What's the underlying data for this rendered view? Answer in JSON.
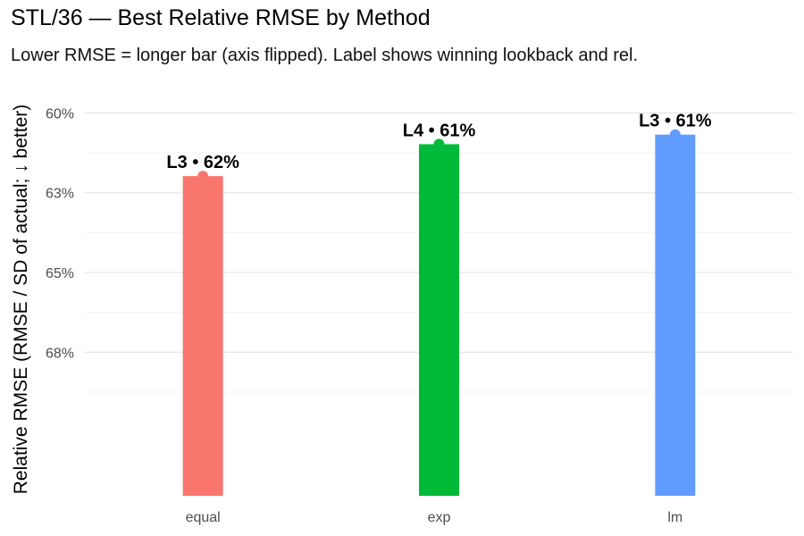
{
  "title": "STL/36 — Best Relative RMSE by Method",
  "subtitle": "Lower RMSE = longer bar (axis flipped). Label shows winning lookback and rel.",
  "ylabel": "Relative RMSE (RMSE / SD of actual; ↓ better)",
  "chart_data": {
    "type": "bar",
    "title": "STL/36 — Best Relative RMSE by Method",
    "subtitle": "Lower RMSE = longer bar (axis flipped). Label shows winning lookback and rel.",
    "ylabel": "Relative RMSE (RMSE / SD of actual; ↓ better)",
    "xlabel": "",
    "y_reversed": true,
    "y_axis_max_bottom": 0.72,
    "y_axis_min_top": 0.587,
    "grid": true,
    "y_ticks": [
      {
        "value": 0.6,
        "label": "60%"
      },
      {
        "value": 0.625,
        "label": "63%"
      },
      {
        "value": 0.65,
        "label": "65%"
      },
      {
        "value": 0.675,
        "label": "68%"
      }
    ],
    "categories": [
      "equal",
      "exp",
      "lm"
    ],
    "values": [
      0.6198,
      0.6098,
      0.6068
    ],
    "data_labels": [
      "L3 • 62%",
      "L4 • 61%",
      "L3 • 61%"
    ],
    "colors": [
      "#F8766D",
      "#00BA38",
      "#619CFF"
    ]
  }
}
